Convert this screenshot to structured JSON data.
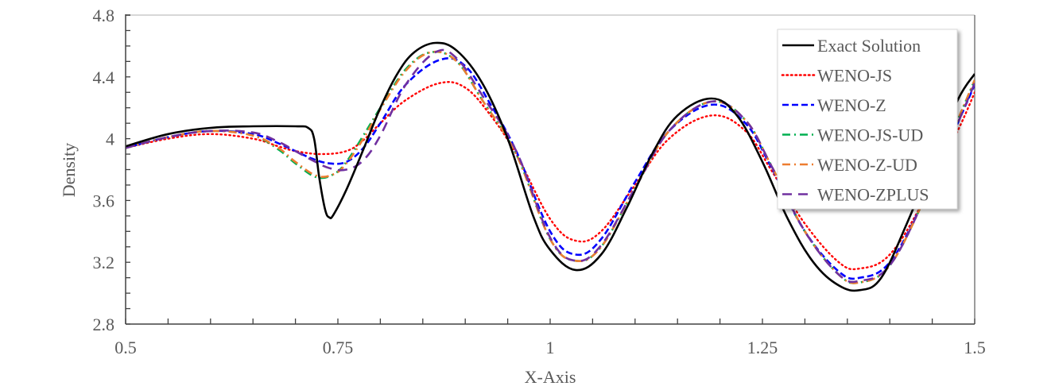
{
  "chart_data": {
    "type": "line",
    "title": "",
    "xlabel": "X-Axis",
    "ylabel": "Density",
    "xlim": [
      0.5,
      1.5
    ],
    "ylim": [
      2.8,
      4.8
    ],
    "xticks": [
      0.5,
      0.75,
      1,
      1.25,
      1.5
    ],
    "xtick_labels": [
      "0.5",
      "0.75",
      "1",
      "1.25",
      "1.5"
    ],
    "yticks": [
      2.8,
      3.2,
      3.6,
      4.0,
      4.4,
      4.8
    ],
    "ytick_labels": [
      "2.8",
      "3.2",
      "3.6",
      "4",
      "4.4",
      "4.8"
    ],
    "x_minor_step": 0.05,
    "y_minor_step": 0.1,
    "grid": false,
    "legend_position": "upper right",
    "series": [
      {
        "name": "Exact Solution",
        "color": "#000000",
        "style": "solid",
        "x": [
          0.5,
          0.55,
          0.6,
          0.65,
          0.7,
          0.715,
          0.722,
          0.728,
          0.735,
          0.74,
          0.745,
          0.76,
          0.78,
          0.8,
          0.82,
          0.84,
          0.865,
          0.89,
          0.92,
          0.95,
          0.98,
          1.0,
          1.03,
          1.06,
          1.09,
          1.12,
          1.15,
          1.19,
          1.22,
          1.25,
          1.28,
          1.31,
          1.34,
          1.365,
          1.39,
          1.42,
          1.45,
          1.48,
          1.5
        ],
        "y": [
          3.95,
          4.03,
          4.07,
          4.08,
          4.08,
          4.07,
          4.0,
          3.75,
          3.54,
          3.49,
          3.51,
          3.67,
          3.93,
          4.2,
          4.42,
          4.56,
          4.62,
          4.57,
          4.36,
          4.0,
          3.5,
          3.28,
          3.15,
          3.25,
          3.55,
          3.9,
          4.15,
          4.26,
          4.15,
          3.85,
          3.48,
          3.2,
          3.05,
          3.02,
          3.1,
          3.45,
          3.85,
          4.25,
          4.42
        ]
      },
      {
        "name": "WENO-JS",
        "color": "#ff0000",
        "style": "dotted",
        "x": [
          0.5,
          0.55,
          0.6,
          0.65,
          0.68,
          0.7,
          0.73,
          0.76,
          0.78,
          0.8,
          0.83,
          0.87,
          0.9,
          0.93,
          0.96,
          1.0,
          1.03,
          1.06,
          1.1,
          1.14,
          1.19,
          1.23,
          1.26,
          1.3,
          1.34,
          1.365,
          1.4,
          1.44,
          1.48,
          1.5
        ],
        "y": [
          3.94,
          4.0,
          4.03,
          4.0,
          3.95,
          3.92,
          3.9,
          3.92,
          3.99,
          4.1,
          4.25,
          4.36,
          4.33,
          4.15,
          3.9,
          3.48,
          3.34,
          3.4,
          3.7,
          4.0,
          4.15,
          4.05,
          3.8,
          3.45,
          3.2,
          3.16,
          3.25,
          3.6,
          4.05,
          4.3
        ]
      },
      {
        "name": "WENO-Z",
        "color": "#0000ff",
        "style": "dashed",
        "x": [
          0.5,
          0.55,
          0.6,
          0.65,
          0.68,
          0.7,
          0.72,
          0.74,
          0.76,
          0.78,
          0.8,
          0.83,
          0.87,
          0.9,
          0.93,
          0.96,
          1.0,
          1.03,
          1.06,
          1.1,
          1.14,
          1.19,
          1.23,
          1.26,
          1.3,
          1.34,
          1.365,
          1.4,
          1.44,
          1.48,
          1.5
        ],
        "y": [
          3.94,
          4.01,
          4.05,
          4.03,
          3.97,
          3.92,
          3.87,
          3.84,
          3.85,
          3.94,
          4.1,
          4.35,
          4.51,
          4.47,
          4.22,
          3.92,
          3.4,
          3.25,
          3.35,
          3.72,
          4.05,
          4.22,
          4.1,
          3.82,
          3.4,
          3.14,
          3.1,
          3.2,
          3.6,
          4.1,
          4.35
        ]
      },
      {
        "name": "WENO-JS-UD",
        "color": "#00b050",
        "style": "dash-dot",
        "x": [
          0.5,
          0.55,
          0.6,
          0.65,
          0.68,
          0.7,
          0.725,
          0.745,
          0.76,
          0.78,
          0.8,
          0.83,
          0.86,
          0.89,
          0.92,
          0.96,
          1.0,
          1.03,
          1.06,
          1.1,
          1.14,
          1.19,
          1.23,
          1.26,
          1.3,
          1.34,
          1.365,
          1.4,
          1.44,
          1.48,
          1.5
        ],
        "y": [
          3.94,
          4.01,
          4.05,
          4.02,
          3.93,
          3.84,
          3.75,
          3.77,
          3.85,
          4.02,
          4.2,
          4.45,
          4.56,
          4.5,
          4.25,
          3.9,
          3.35,
          3.21,
          3.3,
          3.68,
          4.05,
          4.24,
          4.12,
          3.83,
          3.4,
          3.12,
          3.07,
          3.18,
          3.6,
          4.12,
          4.38
        ]
      },
      {
        "name": "WENO-Z-UD",
        "color": "#ed7d31",
        "style": "dash-dot",
        "x": [
          0.5,
          0.55,
          0.6,
          0.65,
          0.68,
          0.7,
          0.725,
          0.745,
          0.76,
          0.78,
          0.8,
          0.83,
          0.86,
          0.89,
          0.92,
          0.96,
          1.0,
          1.03,
          1.06,
          1.1,
          1.14,
          1.19,
          1.23,
          1.26,
          1.3,
          1.34,
          1.365,
          1.4,
          1.44,
          1.48,
          1.5
        ],
        "y": [
          3.94,
          4.01,
          4.05,
          4.02,
          3.94,
          3.85,
          3.76,
          3.77,
          3.84,
          4.0,
          4.19,
          4.44,
          4.56,
          4.5,
          4.25,
          3.9,
          3.35,
          3.21,
          3.3,
          3.68,
          4.05,
          4.24,
          4.12,
          3.83,
          3.4,
          3.12,
          3.07,
          3.18,
          3.6,
          4.12,
          4.38
        ]
      },
      {
        "name": "WENO-ZPLUS",
        "color": "#7030a0",
        "style": "long-dash",
        "x": [
          0.5,
          0.55,
          0.6,
          0.65,
          0.68,
          0.7,
          0.72,
          0.74,
          0.76,
          0.78,
          0.8,
          0.83,
          0.865,
          0.89,
          0.92,
          0.96,
          1.0,
          1.03,
          1.06,
          1.1,
          1.14,
          1.19,
          1.23,
          1.26,
          1.3,
          1.34,
          1.365,
          1.4,
          1.44,
          1.48,
          1.5
        ],
        "y": [
          3.94,
          4.01,
          4.05,
          4.04,
          3.98,
          3.92,
          3.86,
          3.81,
          3.8,
          3.86,
          4.02,
          4.35,
          4.56,
          4.52,
          4.28,
          3.92,
          3.36,
          3.21,
          3.31,
          3.68,
          4.05,
          4.24,
          4.12,
          3.83,
          3.4,
          3.12,
          3.08,
          3.18,
          3.6,
          4.1,
          4.36
        ]
      }
    ]
  }
}
